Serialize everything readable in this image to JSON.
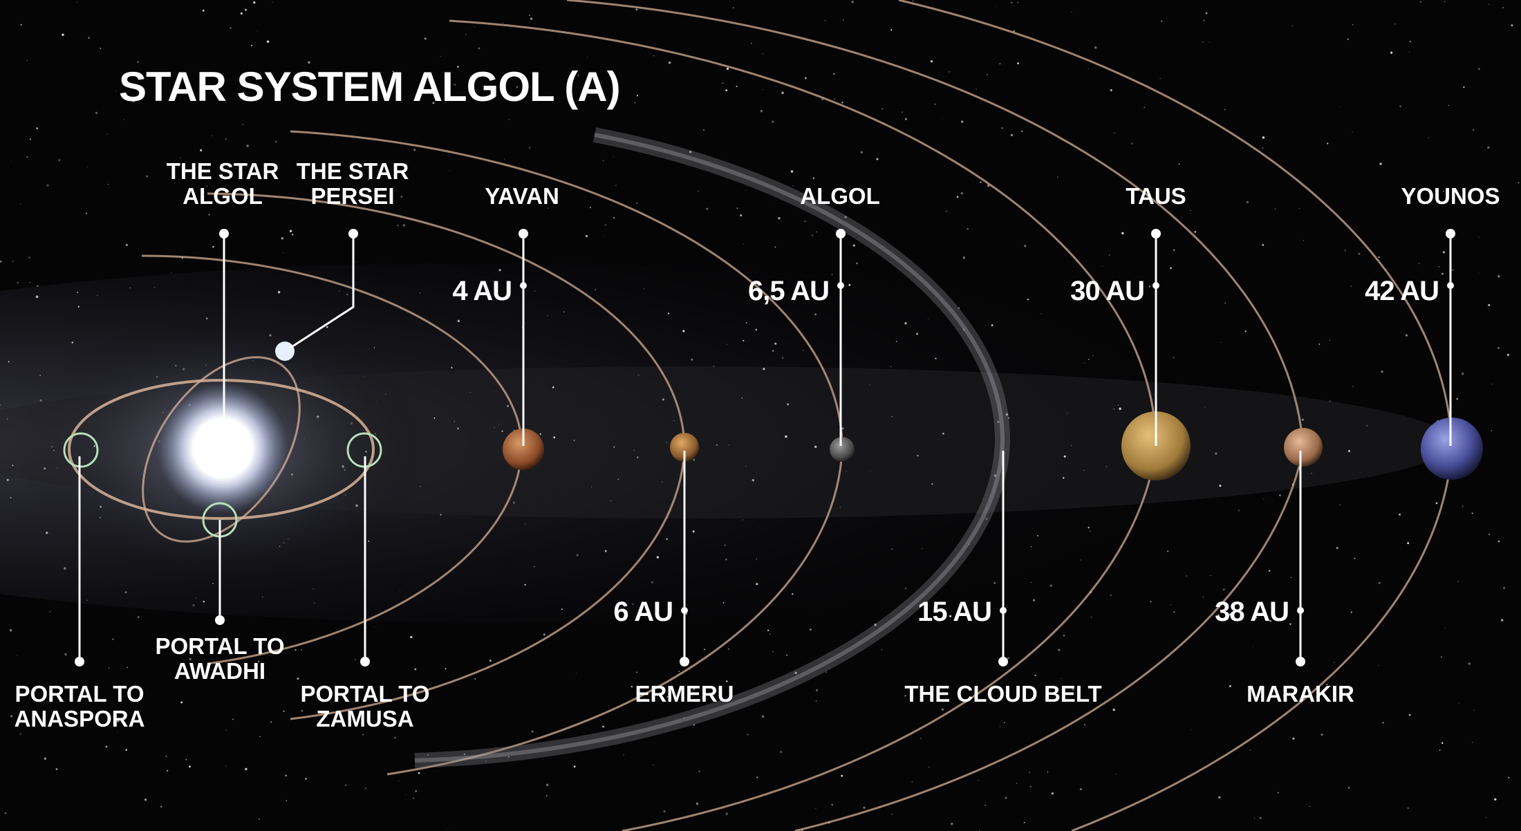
{
  "title": "STAR SYSTEM ALGOL (A)",
  "labels": {
    "star_algol": [
      "THE STAR",
      "ALGOL"
    ],
    "star_persei": [
      "THE STAR",
      "PERSEI"
    ],
    "yavan": "YAVAN",
    "algol_planet": "ALGOL",
    "taus": "TAUS",
    "younos": "YOUNOS",
    "portal_awadhi": [
      "PORTAL TO",
      "AWADHI"
    ],
    "portal_anaspora": [
      "PORTAL TO",
      "ANASPORA"
    ],
    "portal_zamusa": [
      "PORTAL TO",
      "ZAMUSA"
    ],
    "ermeru": "ERMERU",
    "cloud_belt": "THE CLOUD BELT",
    "marakir": "MARAKIR"
  },
  "distances": {
    "yavan": "4 AU",
    "algol_planet": "6,5 AU",
    "taus": "30 AU",
    "younos": "42 AU",
    "ermeru": "6 AU",
    "cloud_belt": "15 AU",
    "marakir": "38 AU"
  },
  "colors": {
    "background": "#000000",
    "text": "#ffffff",
    "orbit": "#c7a48a",
    "portal_ring": "#b8e0b8",
    "star": "#ffffff",
    "yavan": "#a0603a",
    "ermeru": "#b07a45",
    "algol_planet": "#6a6a6a",
    "taus": "#c9a050",
    "marakir": "#c29070",
    "younos": "#4a4f9a"
  }
}
